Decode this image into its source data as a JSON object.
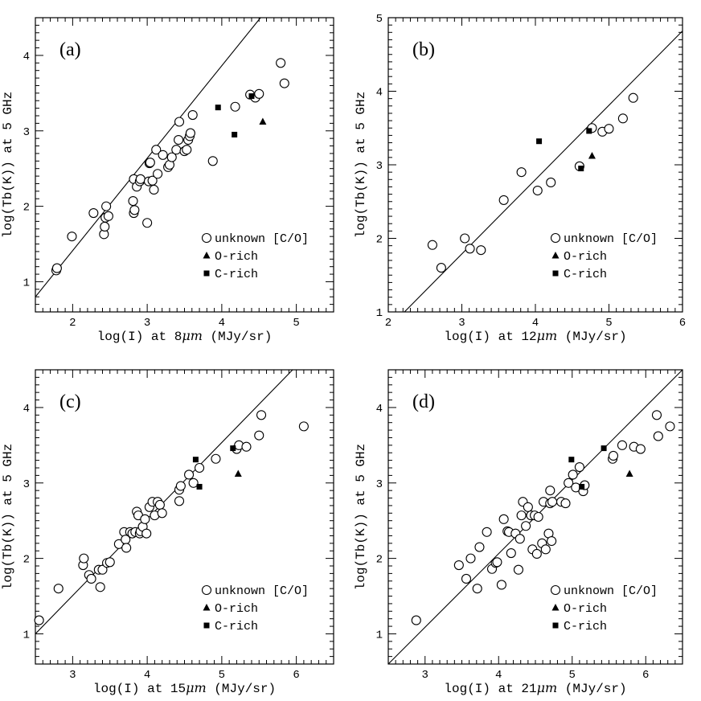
{
  "chart_data": [
    {
      "type": "scatter",
      "panel_label": "(a)",
      "xlabel_prefix": "log(I) at 8",
      "xlabel_unit": "μm",
      "xlabel_suffix": " (MJy/sr)",
      "ylabel": "log(Tb(K)) at 5 GHz",
      "xlim": [
        1.5,
        5.5
      ],
      "ylim": [
        0.6,
        4.5
      ],
      "xticks": [
        2,
        3,
        4,
        5
      ],
      "yticks": [
        1,
        2,
        3,
        4
      ],
      "fit_line": [
        [
          1.5,
          0.8
        ],
        [
          4.52,
          4.5
        ]
      ],
      "legend_position": "lower-right",
      "series": [
        {
          "name": "unknown [C/O]",
          "marker": "open-circle",
          "points": [
            [
              1.78,
              1.15
            ],
            [
              1.79,
              1.18
            ],
            [
              1.99,
              1.6
            ],
            [
              2.28,
              1.91
            ],
            [
              2.42,
              1.63
            ],
            [
              2.43,
              1.73
            ],
            [
              2.44,
              1.85
            ],
            [
              2.45,
              2.0
            ],
            [
              2.48,
              1.87
            ],
            [
              2.81,
              2.07
            ],
            [
              2.82,
              1.91
            ],
            [
              2.83,
              1.95
            ],
            [
              2.82,
              2.36
            ],
            [
              2.86,
              2.26
            ],
            [
              2.9,
              2.33
            ],
            [
              2.91,
              2.36
            ],
            [
              3.0,
              1.78
            ],
            [
              3.02,
              2.33
            ],
            [
              3.03,
              2.57
            ],
            [
              3.04,
              2.58
            ],
            [
              3.07,
              2.34
            ],
            [
              3.09,
              2.22
            ],
            [
              3.12,
              2.75
            ],
            [
              3.14,
              2.43
            ],
            [
              3.21,
              2.68
            ],
            [
              3.28,
              2.52
            ],
            [
              3.3,
              2.55
            ],
            [
              3.33,
              2.65
            ],
            [
              3.39,
              2.75
            ],
            [
              3.42,
              2.88
            ],
            [
              3.43,
              3.12
            ],
            [
              3.5,
              2.73
            ],
            [
              3.53,
              2.75
            ],
            [
              3.55,
              2.88
            ],
            [
              3.57,
              2.93
            ],
            [
              3.58,
              2.97
            ],
            [
              3.61,
              3.21
            ],
            [
              3.88,
              2.6
            ],
            [
              4.18,
              3.32
            ],
            [
              4.38,
              3.48
            ],
            [
              4.45,
              3.44
            ],
            [
              4.5,
              3.49
            ],
            [
              4.79,
              3.9
            ],
            [
              4.84,
              3.63
            ]
          ]
        },
        {
          "name": "O-rich",
          "marker": "filled-triangle",
          "points": [
            [
              4.55,
              3.12
            ]
          ]
        },
        {
          "name": "C-rich",
          "marker": "filled-square",
          "points": [
            [
              3.95,
              3.31
            ],
            [
              4.17,
              2.95
            ],
            [
              4.4,
              3.46
            ]
          ]
        }
      ]
    },
    {
      "type": "scatter",
      "panel_label": "(b)",
      "xlabel_prefix": "log(I) at 12",
      "xlabel_unit": "μm",
      "xlabel_suffix": " (MJy/sr)",
      "ylabel": "log(Tb(K)) at 5 GHz",
      "xlim": [
        2,
        6
      ],
      "ylim": [
        1,
        5
      ],
      "xticks": [
        2,
        3,
        4,
        5,
        6
      ],
      "yticks": [
        1,
        2,
        3,
        4,
        5
      ],
      "fit_line": [
        [
          2.22,
          1.0
        ],
        [
          6.0,
          4.82
        ]
      ],
      "legend_position": "lower-right",
      "series": [
        {
          "name": "unknown [C/O]",
          "marker": "open-circle",
          "points": [
            [
              2.6,
              1.91
            ],
            [
              2.72,
              1.6
            ],
            [
              3.04,
              2.0
            ],
            [
              3.11,
              1.86
            ],
            [
              3.26,
              1.84
            ],
            [
              3.57,
              2.52
            ],
            [
              3.81,
              2.9
            ],
            [
              4.03,
              2.65
            ],
            [
              4.21,
              2.76
            ],
            [
              4.6,
              2.98
            ],
            [
              4.77,
              3.5
            ],
            [
              4.91,
              3.45
            ],
            [
              5.0,
              3.49
            ],
            [
              5.19,
              3.63
            ],
            [
              5.33,
              3.91
            ]
          ]
        },
        {
          "name": "O-rich",
          "marker": "filled-triangle",
          "points": [
            [
              4.77,
              3.12
            ]
          ]
        },
        {
          "name": "C-rich",
          "marker": "filled-square",
          "points": [
            [
              4.05,
              3.32
            ],
            [
              4.62,
              2.95
            ],
            [
              4.73,
              3.46
            ]
          ]
        }
      ]
    },
    {
      "type": "scatter",
      "panel_label": "(c)",
      "xlabel_prefix": "log(I) at 15",
      "xlabel_unit": "μm",
      "xlabel_suffix": " (MJy/sr)",
      "ylabel": "log(Tb(K)) at 5 GHz",
      "xlim": [
        2.5,
        6.5
      ],
      "ylim": [
        0.6,
        4.5
      ],
      "xticks": [
        3,
        4,
        5,
        6
      ],
      "yticks": [
        1,
        2,
        3,
        4
      ],
      "fit_line": [
        [
          2.5,
          1.0
        ],
        [
          5.95,
          4.5
        ]
      ],
      "legend_position": "lower-right",
      "series": [
        {
          "name": "unknown [C/O]",
          "marker": "open-circle",
          "points": [
            [
              2.55,
              1.18
            ],
            [
              2.81,
              1.6
            ],
            [
              3.14,
              1.91
            ],
            [
              3.15,
              2.0
            ],
            [
              3.22,
              1.78
            ],
            [
              3.25,
              1.73
            ],
            [
              3.35,
              1.85
            ],
            [
              3.37,
              1.62
            ],
            [
              3.4,
              1.85
            ],
            [
              3.46,
              1.94
            ],
            [
              3.5,
              1.95
            ],
            [
              3.62,
              2.19
            ],
            [
              3.69,
              2.35
            ],
            [
              3.71,
              2.25
            ],
            [
              3.72,
              2.14
            ],
            [
              3.77,
              2.35
            ],
            [
              3.8,
              2.33
            ],
            [
              3.84,
              2.35
            ],
            [
              3.86,
              2.62
            ],
            [
              3.88,
              2.57
            ],
            [
              3.9,
              2.33
            ],
            [
              3.91,
              2.36
            ],
            [
              3.94,
              2.42
            ],
            [
              3.97,
              2.52
            ],
            [
              3.99,
              2.33
            ],
            [
              4.03,
              2.68
            ],
            [
              4.07,
              2.75
            ],
            [
              4.1,
              2.57
            ],
            [
              4.14,
              2.75
            ],
            [
              4.17,
              2.71
            ],
            [
              4.2,
              2.6
            ],
            [
              4.43,
              2.76
            ],
            [
              4.43,
              2.91
            ],
            [
              4.45,
              2.96
            ],
            [
              4.56,
              3.11
            ],
            [
              4.62,
              3.0
            ],
            [
              4.7,
              3.2
            ],
            [
              4.92,
              3.32
            ],
            [
              5.2,
              3.45
            ],
            [
              5.23,
              3.5
            ],
            [
              5.33,
              3.48
            ],
            [
              5.5,
              3.63
            ],
            [
              5.53,
              3.9
            ],
            [
              6.1,
              3.75
            ]
          ]
        },
        {
          "name": "O-rich",
          "marker": "filled-triangle",
          "points": [
            [
              5.22,
              3.12
            ]
          ]
        },
        {
          "name": "C-rich",
          "marker": "filled-square",
          "points": [
            [
              4.65,
              3.31
            ],
            [
              4.7,
              2.95
            ],
            [
              5.15,
              3.46
            ]
          ]
        }
      ]
    },
    {
      "type": "scatter",
      "panel_label": "(d)",
      "xlabel_prefix": "log(I) at 21",
      "xlabel_unit": "μm",
      "xlabel_suffix": " (MJy/sr)",
      "ylabel": "log(Tb(K)) at 5 GHz",
      "xlim": [
        2.5,
        6.5
      ],
      "ylim": [
        0.6,
        4.5
      ],
      "xticks": [
        3,
        4,
        5,
        6
      ],
      "yticks": [
        1,
        2,
        3,
        4
      ],
      "fit_line": [
        [
          2.5,
          0.6
        ],
        [
          6.5,
          4.5
        ]
      ],
      "legend_position": "lower-right",
      "series": [
        {
          "name": "unknown [C/O]",
          "marker": "open-circle",
          "points": [
            [
              2.88,
              1.18
            ],
            [
              3.46,
              1.91
            ],
            [
              3.56,
              1.73
            ],
            [
              3.62,
              2.0
            ],
            [
              3.71,
              1.6
            ],
            [
              3.74,
              2.15
            ],
            [
              3.84,
              2.35
            ],
            [
              3.91,
              1.86
            ],
            [
              3.96,
              1.94
            ],
            [
              3.98,
              1.95
            ],
            [
              4.04,
              1.65
            ],
            [
              4.07,
              2.52
            ],
            [
              4.12,
              2.36
            ],
            [
              4.14,
              2.35
            ],
            [
              4.17,
              2.07
            ],
            [
              4.23,
              2.33
            ],
            [
              4.27,
              1.85
            ],
            [
              4.29,
              2.26
            ],
            [
              4.31,
              2.57
            ],
            [
              4.33,
              2.75
            ],
            [
              4.37,
              2.43
            ],
            [
              4.4,
              2.68
            ],
            [
              4.44,
              2.57
            ],
            [
              4.46,
              2.12
            ],
            [
              4.49,
              2.57
            ],
            [
              4.52,
              2.06
            ],
            [
              4.54,
              2.55
            ],
            [
              4.59,
              2.2
            ],
            [
              4.61,
              2.75
            ],
            [
              4.64,
              2.12
            ],
            [
              4.68,
              2.33
            ],
            [
              4.7,
              2.73
            ],
            [
              4.7,
              2.9
            ],
            [
              4.72,
              2.23
            ],
            [
              4.73,
              2.75
            ],
            [
              4.85,
              2.75
            ],
            [
              4.91,
              2.73
            ],
            [
              4.95,
              3.0
            ],
            [
              5.01,
              3.11
            ],
            [
              5.05,
              2.94
            ],
            [
              5.1,
              3.21
            ],
            [
              5.15,
              2.89
            ],
            [
              5.17,
              2.97
            ],
            [
              5.55,
              3.32
            ],
            [
              5.56,
              3.36
            ],
            [
              5.68,
              3.5
            ],
            [
              5.84,
              3.48
            ],
            [
              5.93,
              3.45
            ],
            [
              6.15,
              3.9
            ],
            [
              6.17,
              3.62
            ],
            [
              6.33,
              3.75
            ]
          ]
        },
        {
          "name": "O-rich",
          "marker": "filled-triangle",
          "points": [
            [
              5.78,
              3.12
            ]
          ]
        },
        {
          "name": "C-rich",
          "marker": "filled-square",
          "points": [
            [
              4.99,
              3.31
            ],
            [
              5.13,
              2.95
            ],
            [
              5.43,
              3.46
            ]
          ]
        }
      ]
    }
  ]
}
